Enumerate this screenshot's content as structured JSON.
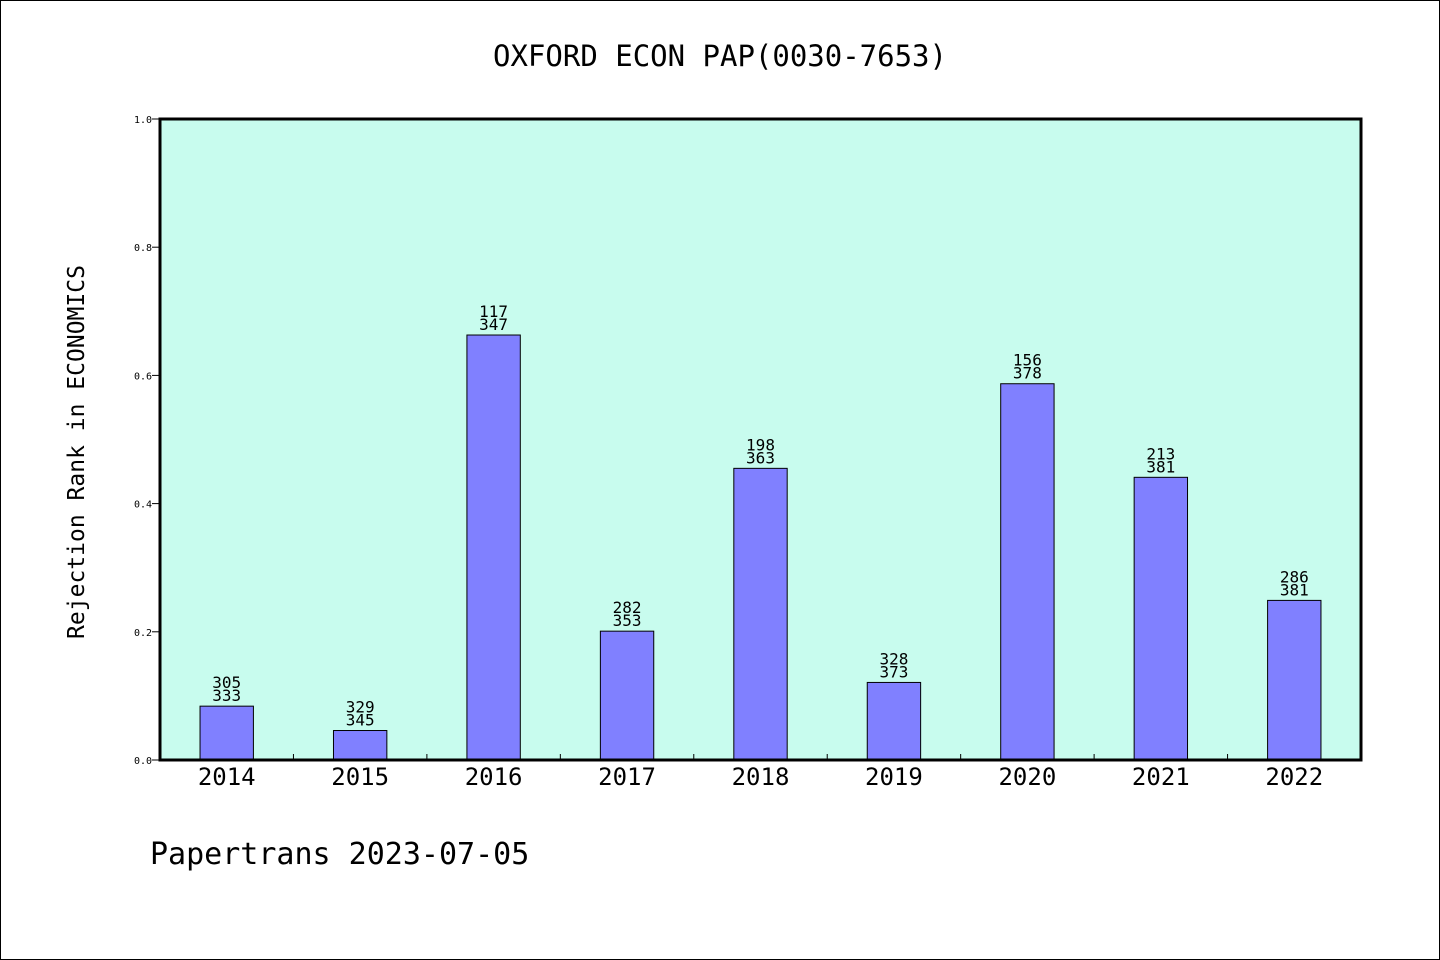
{
  "chart_data": {
    "type": "bar",
    "title": "OXFORD ECON PAP(0030-7653)",
    "xlabel": "",
    "ylabel": "Rejection Rank in ECONOMICS",
    "categories": [
      "2014",
      "2015",
      "2016",
      "2017",
      "2018",
      "2019",
      "2020",
      "2021",
      "2022"
    ],
    "values": [
      0.084,
      0.046,
      0.663,
      0.201,
      0.455,
      0.121,
      0.587,
      0.441,
      0.249
    ],
    "rank_labels": [
      "305",
      "329",
      "117",
      "282",
      "198",
      "328",
      "156",
      "213",
      "286"
    ],
    "total_labels": [
      "333",
      "345",
      "347",
      "353",
      "363",
      "373",
      "378",
      "381",
      "381"
    ],
    "ylim": [
      0,
      1.0
    ],
    "yticks": [
      "0.0",
      "0.2",
      "0.4",
      "0.6",
      "0.8",
      "1.0"
    ],
    "grid": false,
    "colors": {
      "bar_fill": "#8080ff",
      "plot_background": "#c8fcee",
      "axis": "#000000"
    }
  },
  "footer": {
    "text": "Papertrans 2023-07-05"
  }
}
